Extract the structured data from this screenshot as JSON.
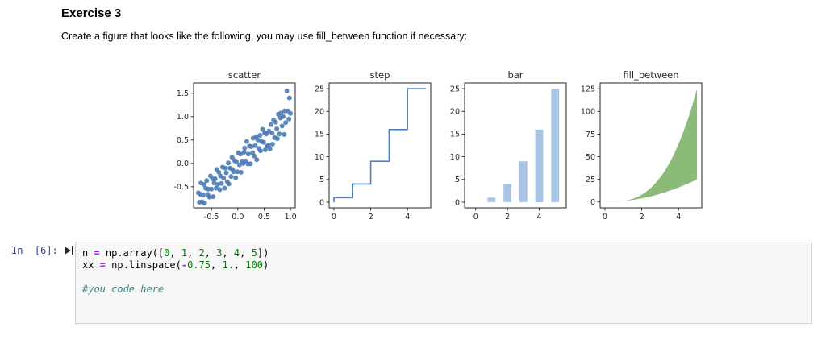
{
  "page": {
    "heading": "Exercise 3",
    "instruction": "Create a figure that looks like the following, you may use fill_between function if necessary:"
  },
  "cell": {
    "prompt": "In  [6]:",
    "run_icon": "step-forward-play-icon",
    "code_lines": [
      [
        {
          "t": "n ",
          "c": "p"
        },
        {
          "t": "=",
          "c": "o"
        },
        {
          "t": " np.array([",
          "c": "p"
        },
        {
          "t": "0",
          "c": "n"
        },
        {
          "t": ", ",
          "c": "p"
        },
        {
          "t": "1",
          "c": "n"
        },
        {
          "t": ", ",
          "c": "p"
        },
        {
          "t": "2",
          "c": "n"
        },
        {
          "t": ", ",
          "c": "p"
        },
        {
          "t": "3",
          "c": "n"
        },
        {
          "t": ", ",
          "c": "p"
        },
        {
          "t": "4",
          "c": "n"
        },
        {
          "t": ", ",
          "c": "p"
        },
        {
          "t": "5",
          "c": "n"
        },
        {
          "t": "])",
          "c": "p"
        }
      ],
      [
        {
          "t": "xx ",
          "c": "p"
        },
        {
          "t": "=",
          "c": "o"
        },
        {
          "t": " np.linspace(",
          "c": "p"
        },
        {
          "t": "-",
          "c": "o"
        },
        {
          "t": "0.75",
          "c": "n"
        },
        {
          "t": ", ",
          "c": "p"
        },
        {
          "t": "1.",
          "c": "n"
        },
        {
          "t": ", ",
          "c": "p"
        },
        {
          "t": "100",
          "c": "n"
        },
        {
          "t": ")",
          "c": "p"
        }
      ],
      [],
      [
        {
          "t": "#you code here",
          "c": "c"
        }
      ]
    ]
  },
  "colors": {
    "prompt_blue": "#303F9F",
    "operator_purple": "#AA22FF",
    "number_green": "#008000",
    "comment_teal": "#408080",
    "scatter_blue": "#4a7bb7",
    "step_blue": "#5081be",
    "bar_lightblue": "#a8c4e4",
    "fill_green": "#8cba78",
    "axis_dark": "#262626"
  },
  "chart_data": [
    {
      "type": "scatter",
      "title": "scatter",
      "color": "#4a7bb7",
      "marker_radius": 3,
      "xlim": [
        -0.84,
        1.09
      ],
      "ylim": [
        -0.95,
        1.72
      ],
      "xticks": [
        -0.5,
        0,
        0.5,
        1
      ],
      "xtick_labels": [
        "-0.5",
        "0.0",
        "0.5",
        "1.0"
      ],
      "yticks": [
        -0.5,
        0,
        0.5,
        1,
        1.5
      ],
      "ytick_labels": [
        "-0.5",
        "0.0",
        "0.5",
        "1.0",
        "1.5"
      ],
      "x": [
        -0.75,
        -0.73,
        -0.71,
        -0.7,
        -0.68,
        -0.66,
        -0.64,
        -0.63,
        -0.61,
        -0.59,
        -0.57,
        -0.56,
        -0.54,
        -0.52,
        -0.5,
        -0.48,
        -0.47,
        -0.45,
        -0.43,
        -0.41,
        -0.4,
        -0.38,
        -0.36,
        -0.34,
        -0.33,
        -0.31,
        -0.29,
        -0.27,
        -0.25,
        -0.24,
        -0.22,
        -0.2,
        -0.18,
        -0.17,
        -0.15,
        -0.13,
        -0.11,
        -0.1,
        -0.08,
        -0.06,
        -0.04,
        -0.03,
        -0.01,
        0.01,
        0.03,
        0.05,
        0.06,
        0.08,
        0.1,
        0.12,
        0.13,
        0.15,
        0.17,
        0.19,
        0.2,
        0.22,
        0.24,
        0.26,
        0.28,
        0.29,
        0.31,
        0.33,
        0.35,
        0.36,
        0.38,
        0.4,
        0.42,
        0.43,
        0.45,
        0.47,
        0.49,
        0.51,
        0.52,
        0.54,
        0.56,
        0.58,
        0.59,
        0.61,
        0.63,
        0.65,
        0.66,
        0.68,
        0.7,
        0.72,
        0.74,
        0.75,
        0.77,
        0.79,
        0.81,
        0.82,
        0.84,
        0.86,
        0.88,
        0.89,
        0.91,
        0.93,
        0.95,
        0.97,
        0.98,
        1.0
      ],
      "y": [
        -0.63,
        -0.83,
        -0.66,
        -0.42,
        -0.82,
        -0.68,
        -0.45,
        -0.85,
        -0.53,
        -0.37,
        -0.66,
        -0.55,
        -0.72,
        -0.27,
        -0.55,
        -0.33,
        -0.71,
        -0.42,
        -0.33,
        -0.53,
        -0.13,
        -0.45,
        -0.19,
        -0.56,
        -0.27,
        -0.43,
        -0.08,
        -0.32,
        -0.53,
        -0.1,
        -0.2,
        -0.39,
        0.01,
        -0.44,
        -0.1,
        -0.28,
        0.13,
        -0.13,
        -0.18,
        0.06,
        -0.31,
        0.04,
        -0.18,
        0.23,
        -0.03,
        0.2,
        -0.19,
        0.05,
        0.0,
        0.24,
        0.33,
        0.05,
        0.47,
        -0.01,
        0.2,
        0.37,
        -0.01,
        0.36,
        0.23,
        0.54,
        0.16,
        0.38,
        0.57,
        0.08,
        0.5,
        0.32,
        0.6,
        0.27,
        0.47,
        0.73,
        0.45,
        0.65,
        0.29,
        0.63,
        0.37,
        0.38,
        0.69,
        0.31,
        0.83,
        0.65,
        0.41,
        0.93,
        0.55,
        0.88,
        0.74,
        0.53,
        1.05,
        0.63,
        0.97,
        1.08,
        0.8,
        1.0,
        0.62,
        1.12,
        0.87,
        1.55,
        1.12,
        0.95,
        1.4,
        1.07
      ]
    },
    {
      "type": "step",
      "title": "step",
      "where": "pre",
      "color": "#5081be",
      "line_width": 1.6,
      "xlim": [
        -0.26,
        5.26
      ],
      "ylim": [
        -1.25,
        26.25
      ],
      "xticks": [
        0,
        2,
        4
      ],
      "xtick_labels": [
        "0",
        "2",
        "4"
      ],
      "yticks": [
        0,
        5,
        10,
        15,
        20,
        25
      ],
      "ytick_labels": [
        "0",
        "5",
        "10",
        "15",
        "20",
        "25"
      ],
      "x": [
        0,
        1,
        2,
        3,
        4,
        5
      ],
      "y": [
        0,
        1,
        4,
        9,
        16,
        25
      ]
    },
    {
      "type": "bar",
      "title": "bar",
      "color": "#a8c4e4",
      "bar_width": 0.5,
      "xlim": [
        -0.7,
        5.7
      ],
      "ylim": [
        -1.25,
        26.25
      ],
      "xticks": [
        0,
        2,
        4
      ],
      "xtick_labels": [
        "0",
        "2",
        "4"
      ],
      "yticks": [
        0,
        5,
        10,
        15,
        20,
        25
      ],
      "ytick_labels": [
        "0",
        "5",
        "10",
        "15",
        "20",
        "25"
      ],
      "x": [
        0,
        1,
        2,
        3,
        4,
        5
      ],
      "y": [
        0,
        1,
        4,
        9,
        16,
        25
      ]
    },
    {
      "type": "fill_between",
      "title": "fill_between",
      "color": "#8cba78",
      "xlim": [
        -0.26,
        5.26
      ],
      "ylim": [
        -6.5,
        131.5
      ],
      "xticks": [
        0,
        2,
        4
      ],
      "xtick_labels": [
        "0",
        "2",
        "4"
      ],
      "yticks": [
        0,
        25,
        50,
        75,
        100,
        125
      ],
      "ytick_labels": [
        "0",
        "25",
        "50",
        "75",
        "100",
        "125"
      ],
      "x": [
        0,
        0.25,
        0.5,
        0.75,
        1,
        1.25,
        1.5,
        1.75,
        2,
        2.25,
        2.5,
        2.75,
        3,
        3.25,
        3.5,
        3.75,
        4,
        4.25,
        4.5,
        4.75,
        5
      ],
      "y_lower": [
        0,
        0.06,
        0.25,
        0.56,
        1,
        1.56,
        2.25,
        3.06,
        4,
        5.06,
        6.25,
        7.56,
        9,
        10.56,
        12.25,
        14.06,
        16,
        18.06,
        20.25,
        22.56,
        25
      ],
      "y_upper": [
        0,
        0.02,
        0.13,
        0.42,
        1,
        1.95,
        3.38,
        5.36,
        8,
        11.39,
        15.63,
        20.8,
        27,
        34.33,
        42.88,
        52.73,
        64,
        76.77,
        91.13,
        107.17,
        125
      ]
    }
  ]
}
